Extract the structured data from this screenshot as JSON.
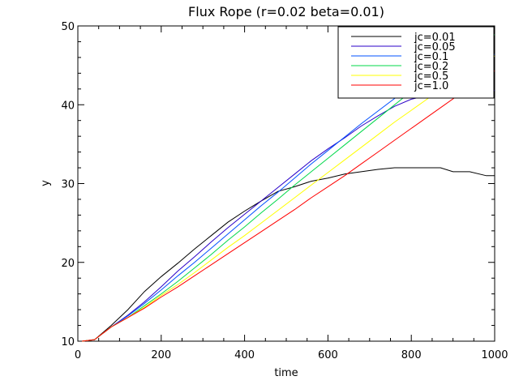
{
  "chart_data": {
    "type": "line",
    "title": "Flux Rope (r=0.02 beta=0.01)",
    "xlabel": "time",
    "ylabel": "y",
    "xlim": [
      0,
      1000
    ],
    "ylim": [
      10,
      50
    ],
    "xticks": [
      0,
      200,
      400,
      600,
      800,
      1000
    ],
    "yticks": [
      10,
      20,
      30,
      40,
      50
    ],
    "grid": false,
    "legend_position": "top-right",
    "series": [
      {
        "name": "jc=0.01",
        "color": "#000000",
        "x": [
          10,
          40,
          80,
          120,
          160,
          200,
          240,
          280,
          320,
          360,
          400,
          440,
          480,
          520,
          560,
          600,
          640,
          680,
          720,
          760,
          800,
          840,
          870,
          900,
          940,
          980,
          1000
        ],
        "y": [
          10,
          10.2,
          12,
          14,
          16.3,
          18.2,
          19.9,
          21.7,
          23.4,
          25.1,
          26.5,
          27.8,
          29,
          29.6,
          30.3,
          30.7,
          31.2,
          31.5,
          31.8,
          32,
          32,
          32,
          32,
          31.5,
          31.5,
          31,
          31
        ]
      },
      {
        "name": "jc=0.05",
        "color": "#2a00c8",
        "x": [
          10,
          40,
          80,
          120,
          160,
          200,
          240,
          280,
          320,
          360,
          400,
          440,
          480,
          520,
          560,
          600,
          640,
          680,
          720,
          760,
          800,
          840,
          880,
          920,
          960,
          1000
        ],
        "y": [
          10,
          10.2,
          11.8,
          13.3,
          15,
          16.9,
          18.9,
          20.7,
          22.6,
          24.4,
          26.1,
          27.8,
          29.5,
          31.2,
          32.9,
          34.4,
          35.8,
          37.3,
          38.6,
          39.8,
          40.7,
          41.2,
          41.5,
          41.6,
          41.7,
          41.8
        ]
      },
      {
        "name": "jc=0.1",
        "color": "#0050ff",
        "x": [
          10,
          40,
          80,
          120,
          160,
          200,
          240,
          280,
          320,
          360,
          400,
          440,
          480,
          520,
          560,
          600,
          640,
          680,
          720,
          760,
          800,
          840,
          880,
          920,
          960,
          1000
        ],
        "y": [
          10,
          10.2,
          11.8,
          13.2,
          14.8,
          16.5,
          18.3,
          20,
          21.8,
          23.6,
          25.4,
          27.2,
          28.9,
          30.7,
          32.5,
          34.2,
          35.9,
          37.6,
          39.2,
          40.8,
          42.2,
          43.5,
          44.5,
          45.3,
          45.9,
          46.4
        ]
      },
      {
        "name": "jc=0.2",
        "color": "#00d84a",
        "x": [
          10,
          40,
          80,
          120,
          160,
          200,
          240,
          280,
          320,
          360,
          400,
          440,
          480,
          520,
          560,
          600,
          640,
          680,
          720,
          760,
          800,
          840,
          880,
          920,
          960,
          1000
        ],
        "y": [
          10,
          10.2,
          11.8,
          13,
          14.5,
          16,
          17.6,
          19.3,
          21,
          22.8,
          24.5,
          26.3,
          28,
          29.8,
          31.5,
          33.2,
          34.9,
          36.6,
          38.3,
          40,
          41.7,
          43.3,
          44.8,
          46.3,
          47.7,
          48.9
        ]
      },
      {
        "name": "jc=0.5",
        "color": "#ffff00",
        "x": [
          10,
          40,
          80,
          120,
          160,
          200,
          240,
          280,
          320,
          360,
          400,
          440,
          480,
          520,
          560,
          600,
          640,
          680,
          720,
          760,
          800,
          840,
          880,
          920,
          960,
          1000
        ],
        "y": [
          10,
          10.2,
          11.8,
          13,
          14.3,
          15.8,
          17.2,
          18.7,
          20.3,
          21.9,
          23.4,
          25,
          26.6,
          28.2,
          29.8,
          31.4,
          33,
          34.6,
          36.2,
          37.8,
          39.3,
          40.8,
          42.3,
          43.7,
          45,
          46.2
        ]
      },
      {
        "name": "jc=1.0",
        "color": "#ff0000",
        "x": [
          10,
          40,
          80,
          120,
          160,
          200,
          240,
          280,
          320,
          360,
          400,
          440,
          480,
          520,
          560,
          600,
          640,
          680,
          720,
          760,
          800,
          840,
          880,
          920,
          960,
          1000
        ],
        "y": [
          10,
          10.2,
          11.8,
          13,
          14.2,
          15.6,
          16.9,
          18.3,
          19.7,
          21.1,
          22.5,
          23.9,
          25.3,
          26.7,
          28.2,
          29.6,
          31,
          32.5,
          34,
          35.5,
          37,
          38.5,
          40,
          41.5,
          43,
          44.3
        ]
      }
    ]
  }
}
